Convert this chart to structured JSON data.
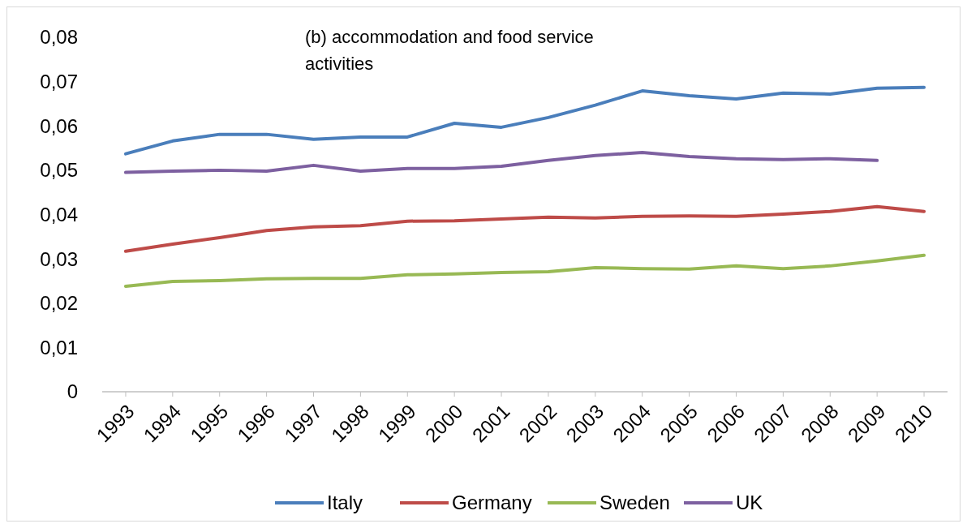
{
  "chart_data": {
    "type": "line",
    "title": "(b) accommodation and food service activities",
    "categories": [
      "1993",
      "1994",
      "1995",
      "1996",
      "1997",
      "1998",
      "1999",
      "2000",
      "2001",
      "2002",
      "2003",
      "2004",
      "2005",
      "2006",
      "2007",
      "2008",
      "2009",
      "2010"
    ],
    "series": [
      {
        "name": "Italy",
        "color": "#4a7ebb",
        "values": [
          0.0537,
          0.0566,
          0.0581,
          0.0581,
          0.057,
          0.0575,
          0.0575,
          0.0606,
          0.0597,
          0.0619,
          0.0647,
          0.0679,
          0.0668,
          0.0661,
          0.0674,
          0.0672,
          0.0685,
          0.0687
        ]
      },
      {
        "name": "Germany",
        "color": "#be4b48",
        "values": [
          0.0317,
          0.0333,
          0.0348,
          0.0364,
          0.0372,
          0.0375,
          0.0385,
          0.0386,
          0.039,
          0.0394,
          0.0392,
          0.0396,
          0.0397,
          0.0396,
          0.0401,
          0.0407,
          0.0418,
          0.0407
        ]
      },
      {
        "name": "Sweden",
        "color": "#98b954",
        "values": [
          0.0238,
          0.0249,
          0.0251,
          0.0255,
          0.0256,
          0.0256,
          0.0264,
          0.0266,
          0.0269,
          0.0271,
          0.028,
          0.0278,
          0.0277,
          0.0284,
          0.0278,
          0.0284,
          0.0295,
          0.0308
        ]
      },
      {
        "name": "UK",
        "color": "#7d60a0",
        "values": [
          0.0495,
          0.0498,
          0.05,
          0.0498,
          0.0511,
          0.0498,
          0.0504,
          0.0504,
          0.0509,
          0.0522,
          0.0533,
          0.054,
          0.0531,
          0.0526,
          0.0524,
          0.0526,
          0.0522,
          null
        ]
      }
    ],
    "ylim": [
      0,
      0.08
    ],
    "yticks": [
      0,
      {
        "value": 0.01,
        "label": "0,01"
      },
      {
        "value": 0.02,
        "label": "0,02"
      },
      {
        "value": 0.03,
        "label": "0,03"
      },
      {
        "value": 0.04,
        "label": "0,04"
      },
      {
        "value": 0.05,
        "label": "0,05"
      },
      {
        "value": 0.06,
        "label": "0,06"
      },
      {
        "value": 0.07,
        "label": "0,07"
      },
      {
        "value": 0.08,
        "label": "0,08"
      }
    ],
    "legend": "bottom",
    "line_style": "solid",
    "marker": "none"
  }
}
